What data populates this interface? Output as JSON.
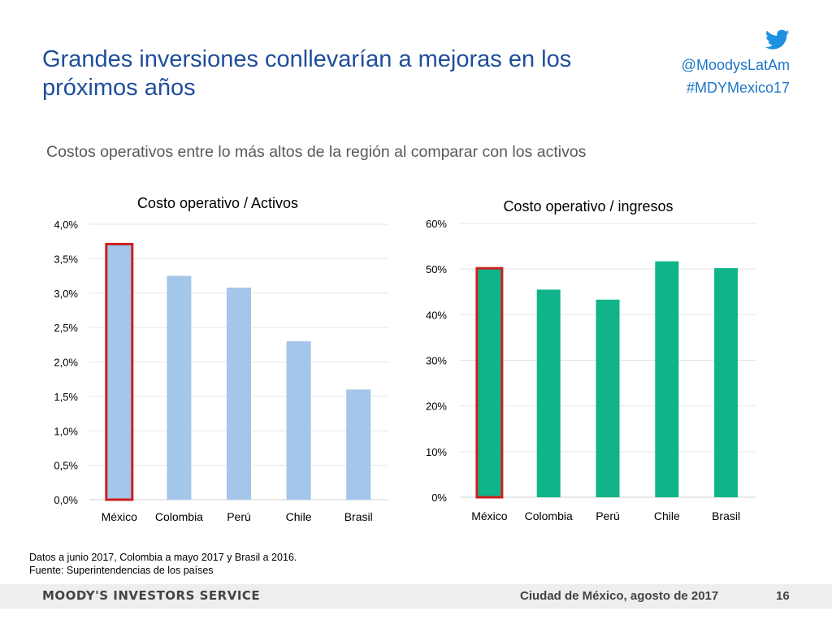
{
  "slide": {
    "title": "Grandes inversiones conllevarían a mejoras en los próximos años",
    "subtitle": "Costos operativos entre lo más altos de la región al comparar con los activos"
  },
  "social": {
    "icon": "twitter-bird-icon",
    "handle": "@MoodysLatAm",
    "hashtag": "#MDYMexico17",
    "color": "#1e76c8"
  },
  "footnotes": {
    "line1": "Datos a junio 2017, Colombia a mayo 2017 y Brasil a 2016.",
    "line2": "Fuente: Superintendencias de los países"
  },
  "footer": {
    "brand": "MOODY'S INVESTORS SERVICE",
    "place_date": "Ciudad de México, agosto de 2017",
    "page": "16"
  },
  "chart_data": [
    {
      "type": "bar",
      "title": "Costo operativo / Activos",
      "categories": [
        "México",
        "Colombia",
        "Perú",
        "Chile",
        "Brasil"
      ],
      "values": [
        0.037,
        0.0325,
        0.0308,
        0.023,
        0.016
      ],
      "ylim": [
        0,
        0.04
      ],
      "yticks": [
        "0,0%",
        "0,5%",
        "1,0%",
        "1,5%",
        "2,0%",
        "2,5%",
        "3,0%",
        "3,5%",
        "4,0%"
      ],
      "bar_color": "#a3c6ea",
      "highlight": "México",
      "highlight_color": "#cc1f1f",
      "grid": true
    },
    {
      "type": "bar",
      "title": "Costo operativo / ingresos",
      "categories": [
        "México",
        "Colombia",
        "Perú",
        "Chile",
        "Brasil"
      ],
      "values": [
        0.5,
        0.455,
        0.433,
        0.517,
        0.502
      ],
      "ylim": [
        0,
        0.6
      ],
      "yticks": [
        "0%",
        "10%",
        "20%",
        "30%",
        "40%",
        "50%",
        "60%"
      ],
      "bar_color": "#0fb48a",
      "highlight": "México",
      "highlight_color": "#cc1f1f",
      "grid": true
    }
  ]
}
